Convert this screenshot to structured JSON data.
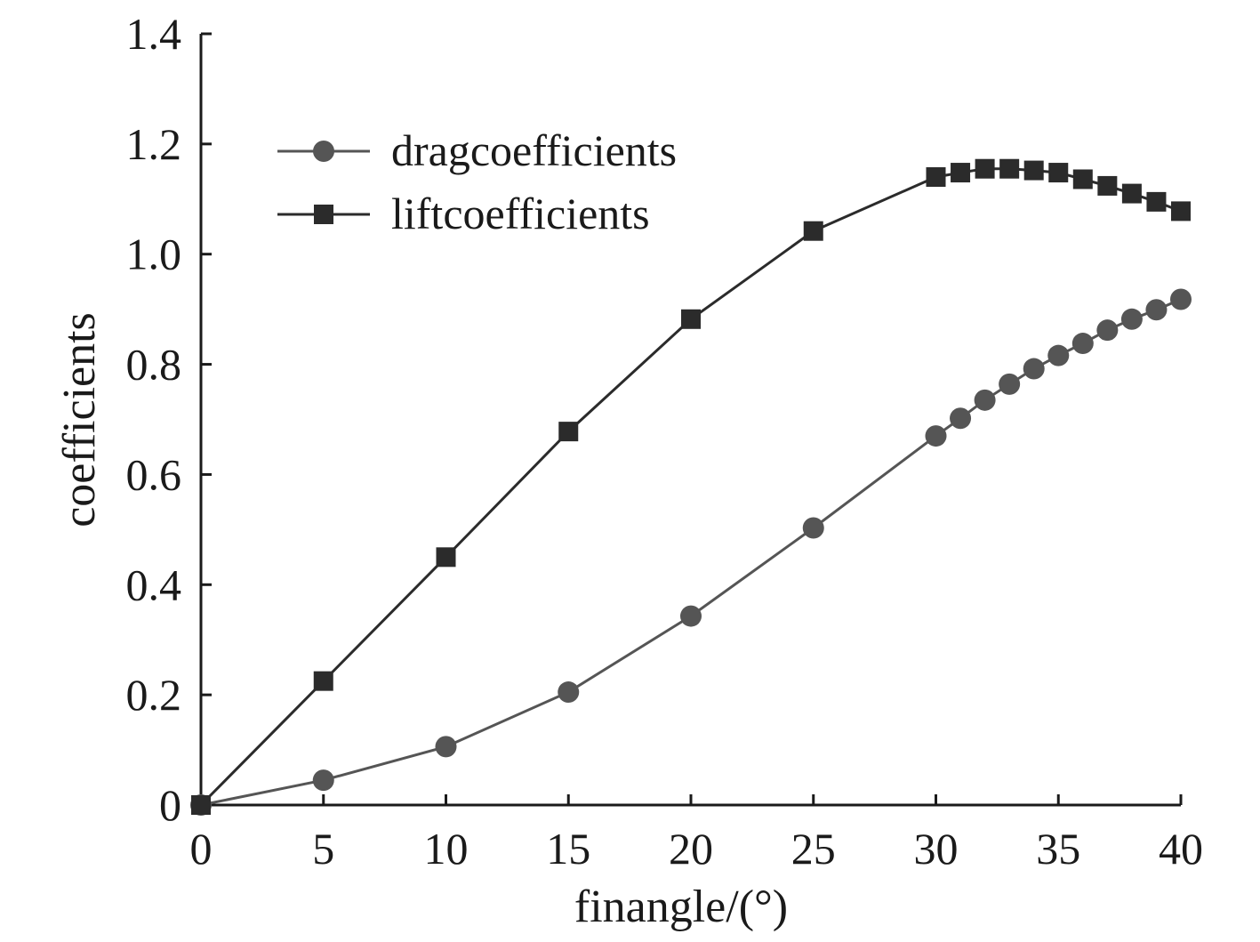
{
  "chart_data": {
    "type": "line",
    "title": "",
    "xlabel": "finangle/(°)",
    "ylabel": "coefficients",
    "xlim": [
      0,
      40
    ],
    "ylim": [
      0,
      1.4
    ],
    "xticks": [
      0,
      5,
      10,
      15,
      20,
      25,
      30,
      35,
      40
    ],
    "xtick_labels": [
      "0",
      "5",
      "10",
      "15",
      "20",
      "25",
      "30",
      "35",
      "40"
    ],
    "yticks": [
      0,
      0.2,
      0.4,
      0.6,
      0.8,
      1.0,
      1.2,
      1.4
    ],
    "ytick_labels": [
      "0",
      "0.2",
      "0.4",
      "0.6",
      "0.8",
      "1.0",
      "1.2",
      "1.4"
    ],
    "grid": false,
    "legend_position": "top-left",
    "series": [
      {
        "name": "dragcoefficients",
        "marker": "circle",
        "color": "#555555",
        "x": [
          0,
          5,
          10,
          15,
          20,
          25,
          30,
          31,
          32,
          33,
          34,
          35,
          36,
          37,
          38,
          39,
          40
        ],
        "y": [
          0,
          0.045,
          0.106,
          0.205,
          0.343,
          0.503,
          0.67,
          0.702,
          0.735,
          0.764,
          0.792,
          0.816,
          0.838,
          0.862,
          0.882,
          0.899,
          0.918
        ]
      },
      {
        "name": "liftcoefficients",
        "marker": "square",
        "color": "#2b2b2b",
        "x": [
          0,
          5,
          10,
          15,
          20,
          25,
          30,
          31,
          32,
          33,
          34,
          35,
          36,
          37,
          38,
          39,
          40
        ],
        "y": [
          0,
          0.225,
          0.45,
          0.678,
          0.882,
          1.042,
          1.14,
          1.148,
          1.155,
          1.155,
          1.152,
          1.148,
          1.136,
          1.124,
          1.11,
          1.095,
          1.078
        ]
      }
    ]
  }
}
